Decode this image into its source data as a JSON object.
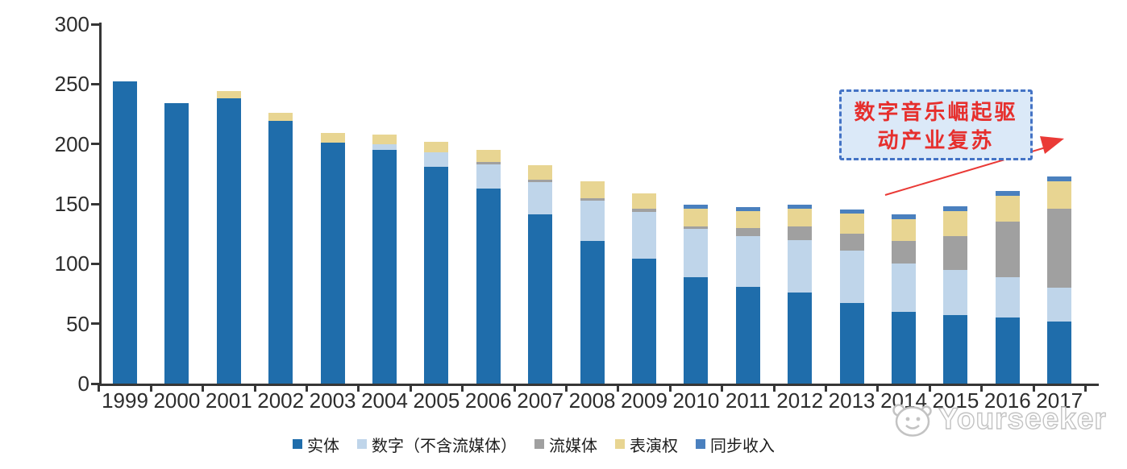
{
  "chart_data": {
    "type": "bar",
    "stacked": true,
    "title": "",
    "xlabel": "",
    "ylabel": "",
    "categories": [
      "1999",
      "2000",
      "2001",
      "2002",
      "2003",
      "2004",
      "2005",
      "2006",
      "2007",
      "2008",
      "2009",
      "2010",
      "2011",
      "2012",
      "2013",
      "2014",
      "2015",
      "2016",
      "2017"
    ],
    "series": [
      {
        "name": "实体",
        "color": "#1f6dab",
        "values": [
          252,
          234,
          238,
          219,
          201,
          195,
          181,
          163,
          141,
          119,
          104,
          89,
          81,
          76,
          67,
          60,
          57,
          55,
          52
        ]
      },
      {
        "name": "数字（不含流媒体）",
        "color": "#bfd5ea",
        "values": [
          0,
          0,
          0,
          0,
          0,
          5,
          12,
          20,
          27,
          34,
          39,
          40,
          42,
          44,
          44,
          40,
          38,
          34,
          28
        ]
      },
      {
        "name": "流媒体",
        "color": "#a0a0a0",
        "values": [
          0,
          0,
          0,
          0,
          0,
          0,
          0,
          2,
          2,
          2,
          3,
          2,
          7,
          11,
          14,
          19,
          28,
          46,
          66
        ]
      },
      {
        "name": "表演权",
        "color": "#e8d592",
        "values": [
          0,
          0,
          6,
          7,
          8,
          8,
          9,
          10,
          12,
          14,
          13,
          15,
          14,
          15,
          17,
          18,
          21,
          22,
          23
        ]
      },
      {
        "name": "同步收入",
        "color": "#4a80be",
        "values": [
          0,
          0,
          0,
          0,
          0,
          0,
          0,
          0,
          0,
          0,
          0,
          3,
          3,
          3,
          3,
          4,
          4,
          4,
          4
        ]
      }
    ],
    "ylim": [
      0,
      300
    ],
    "yticks": [
      0,
      50,
      100,
      150,
      200,
      250,
      300
    ],
    "grid": false,
    "legend_position": "bottom"
  },
  "annotation": {
    "line1": "数字音乐崛起驱",
    "line2": "动产业复苏",
    "box_fill": "#dbe9f8",
    "box_border": "#4473c5",
    "text_color": "#e62f2d",
    "arrow_color": "#ea3a36"
  },
  "watermark": {
    "text": "Yourseeker"
  }
}
